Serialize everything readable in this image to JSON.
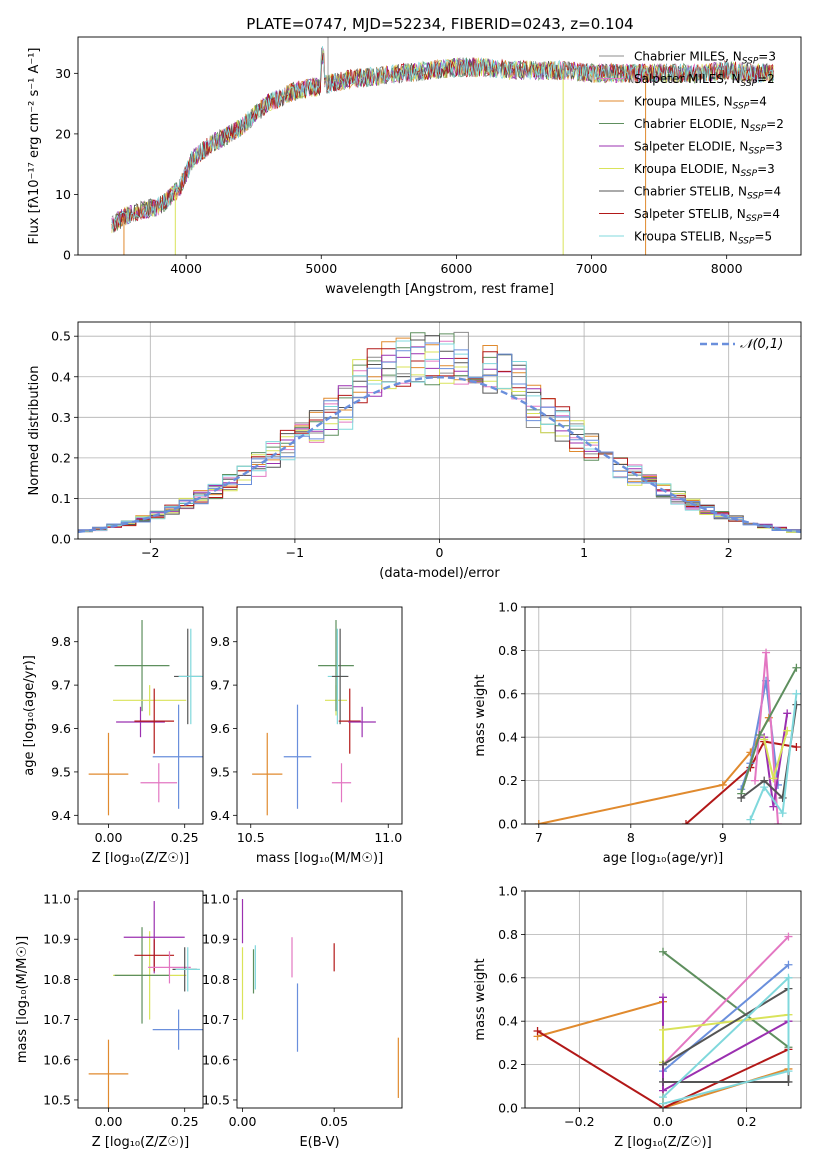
{
  "title": "PLATE=0747, MJD=52234, FIBERID=0243, z=0.104",
  "colors": {
    "Chabrier MILES": "#8c8c8c",
    "Salpeter MILES": "#e377c2",
    "Kroupa MILES": "#e08a2e",
    "Chabrier ELODIE": "#5e8f5e",
    "Salpeter ELODIE": "#9b30b0",
    "Kroupa ELODIE": "#d9e35a",
    "Chabrier STELIB": "#555555",
    "Salpeter STELIB": "#b21818",
    "Kroupa STELIB": "#80d8dc",
    "Blue": "#6a8fdc",
    "Orange": "#e07b20"
  },
  "chart_data": [
    {
      "type": "line",
      "xlabel": "wavelength [Angstrom, rest frame]",
      "ylabel": "Flux [fλ10⁻¹⁷ erg cm⁻² s⁻¹ A⁻¹]",
      "xlim": [
        3200,
        8550
      ],
      "ylim": [
        0,
        36
      ],
      "xticks": [
        4000,
        5000,
        6000,
        7000,
        8000
      ],
      "yticks": [
        0,
        10,
        20,
        30
      ],
      "grid": false,
      "legend_position": "right",
      "series": [
        {
          "name": "Chabrier MILES, N_SSP=3",
          "color": "#8c8c8c"
        },
        {
          "name": "Salpeter MILES, N_SSP=2",
          "color": "#e377c2"
        },
        {
          "name": "Kroupa MILES, N_SSP=4",
          "color": "#e08a2e"
        },
        {
          "name": "Chabrier ELODIE, N_SSP=2",
          "color": "#5e8f5e"
        },
        {
          "name": "Salpeter ELODIE, N_SSP=3",
          "color": "#9b30b0"
        },
        {
          "name": "Kroupa ELODIE, N_SSP=3",
          "color": "#d9e35a"
        },
        {
          "name": "Chabrier STELIB, N_SSP=4",
          "color": "#555555"
        },
        {
          "name": "Salpeter STELIB, N_SSP=4",
          "color": "#b21818"
        },
        {
          "name": "Kroupa STELIB, N_SSP=5",
          "color": "#80d8dc"
        }
      ],
      "continuum": {
        "x": [
          3450,
          3600,
          3800,
          3950,
          4050,
          4200,
          4400,
          4600,
          4800,
          5000,
          5200,
          5400,
          5600,
          5800,
          6000,
          6200,
          6400,
          6600,
          6800,
          7000,
          7200,
          7400,
          7600,
          7800,
          8000,
          8200,
          8350
        ],
        "y": [
          5,
          7,
          8,
          11,
          16,
          18.5,
          21,
          25,
          27,
          28,
          29,
          29.5,
          30,
          30.5,
          31,
          31,
          30.5,
          30.5,
          30.5,
          30,
          30,
          30,
          30,
          30,
          30.5,
          30,
          30
        ]
      }
    },
    {
      "type": "step",
      "xlabel": "(data-model)/error",
      "ylabel": "Normed distribution",
      "xlim": [
        -2.5,
        2.5
      ],
      "ylim": [
        0,
        0.535
      ],
      "xticks": [
        -2,
        -1,
        0,
        1,
        2
      ],
      "yticks": [
        0,
        0.1,
        0.2,
        0.3,
        0.4,
        0.5
      ],
      "grid": true,
      "legend": "𝒩(0,1)",
      "legend_position": "top-right",
      "hist_bin_width": 0.1,
      "reference_curve": "normal(0,1)"
    },
    {
      "type": "scatter",
      "xlabel": "Z [log₁₀(Z/Z☉)]",
      "ylabel": "age  [log₁₀(age/yr)]",
      "xlim": [
        -0.1,
        0.31
      ],
      "ylim": [
        9.38,
        9.88
      ],
      "xticks": [
        0.0,
        0.25
      ],
      "yticks": [
        9.4,
        9.5,
        9.6,
        9.7,
        9.8
      ],
      "points": [
        {
          "color": "#e08a2e",
          "x": 0.0,
          "xerr": 0.065,
          "y": 9.495,
          "yerr": 0.095
        },
        {
          "color": "#5e8f5e",
          "x": 0.11,
          "xerr": 0.09,
          "y": 9.745,
          "yerr": 0.105
        },
        {
          "color": "#9b30b0",
          "x": 0.105,
          "xerr": 0.08,
          "y": 9.615,
          "yerr": 0.035
        },
        {
          "color": "#d9e35a",
          "x": 0.135,
          "xerr": 0.12,
          "y": 9.665,
          "yerr": 0.035
        },
        {
          "color": "#b21818",
          "x": 0.15,
          "xerr": 0.065,
          "y": 9.617,
          "yerr": 0.075
        },
        {
          "color": "#e377c2",
          "x": 0.165,
          "xerr": 0.06,
          "y": 9.475,
          "yerr": 0.045
        },
        {
          "color": "#6a8fdc",
          "x": 0.23,
          "xerr": 0.085,
          "y": 9.535,
          "yerr": 0.12
        },
        {
          "color": "#555555",
          "x": 0.26,
          "xerr": 0.045,
          "y": 9.72,
          "yerr": 0.11
        },
        {
          "color": "#80d8dc",
          "x": 0.27,
          "xerr": 0.04,
          "y": 9.72,
          "yerr": 0.11
        }
      ]
    },
    {
      "type": "scatter",
      "xlabel": "mass [log₁₀(M/M☉)]",
      "ylabel": "",
      "xlim": [
        10.45,
        11.05
      ],
      "ylim": [
        9.38,
        9.88
      ],
      "xticks": [
        10.5,
        11.0
      ],
      "yticks": [
        9.4,
        9.5,
        9.6,
        9.7,
        9.8
      ],
      "points": [
        {
          "color": "#e08a2e",
          "x": 10.56,
          "xerr": 0.055,
          "y": 9.495,
          "yerr": 0.095
        },
        {
          "color": "#6a8fdc",
          "x": 10.67,
          "xerr": 0.05,
          "y": 9.535,
          "yerr": 0.12
        },
        {
          "color": "#d9e35a",
          "x": 10.81,
          "xerr": 0.04,
          "y": 9.665,
          "yerr": 0.035
        },
        {
          "color": "#5e8f5e",
          "x": 10.81,
          "xerr": 0.065,
          "y": 9.745,
          "yerr": 0.105
        },
        {
          "color": "#80d8dc",
          "x": 10.815,
          "xerr": 0.035,
          "y": 9.72,
          "yerr": 0.11
        },
        {
          "color": "#555555",
          "x": 10.825,
          "xerr": 0.03,
          "y": 9.72,
          "yerr": 0.11
        },
        {
          "color": "#e377c2",
          "x": 10.83,
          "xerr": 0.035,
          "y": 9.475,
          "yerr": 0.045
        },
        {
          "color": "#b21818",
          "x": 10.86,
          "xerr": 0.04,
          "y": 9.617,
          "yerr": 0.075
        },
        {
          "color": "#9b30b0",
          "x": 10.905,
          "xerr": 0.05,
          "y": 9.615,
          "yerr": 0.035
        }
      ]
    },
    {
      "type": "line",
      "xlabel": "age  [log₁₀(age/yr)]",
      "ylabel": "mass weight",
      "xlim": [
        6.85,
        9.85
      ],
      "ylim": [
        0,
        1.0
      ],
      "xticks": [
        7,
        8,
        9
      ],
      "yticks": [
        0.0,
        0.2,
        0.4,
        0.6,
        0.8,
        1.0
      ],
      "grid": true,
      "series": [
        {
          "color": "#e08a2e",
          "x": [
            7.0,
            9.0,
            9.3,
            9.5
          ],
          "y": [
            0.0,
            0.18,
            0.33,
            0.49
          ]
        },
        {
          "color": "#b21818",
          "x": [
            8.6,
            9.3,
            9.45,
            9.8
          ],
          "y": [
            0.0,
            0.26,
            0.38,
            0.355
          ]
        },
        {
          "color": "#6a8fdc",
          "x": [
            9.2,
            9.3,
            9.47,
            9.6
          ],
          "y": [
            0.16,
            0.28,
            0.66,
            0.18
          ]
        },
        {
          "color": "#e377c2",
          "x": [
            9.35,
            9.47,
            9.6
          ],
          "y": [
            0.2,
            0.79,
            0.0
          ]
        },
        {
          "color": "#5e8f5e",
          "x": [
            9.2,
            9.4,
            9.8
          ],
          "y": [
            0.14,
            0.41,
            0.72
          ]
        },
        {
          "color": "#9b30b0",
          "x": [
            9.45,
            9.55,
            9.7
          ],
          "y": [
            0.4,
            0.08,
            0.51
          ]
        },
        {
          "color": "#d9e35a",
          "x": [
            9.45,
            9.55,
            9.7
          ],
          "y": [
            0.39,
            0.21,
            0.43
          ]
        },
        {
          "color": "#555555",
          "x": [
            9.2,
            9.45,
            9.65,
            9.8
          ],
          "y": [
            0.12,
            0.2,
            0.12,
            0.55
          ]
        },
        {
          "color": "#80d8dc",
          "x": [
            9.3,
            9.45,
            9.65,
            9.8
          ],
          "y": [
            0.02,
            0.17,
            0.05,
            0.6
          ]
        }
      ]
    },
    {
      "type": "scatter",
      "xlabel": "Z [log₁₀(Z/Z☉)]",
      "ylabel": "mass [log₁₀(M/M☉)]",
      "xlim": [
        -0.1,
        0.31
      ],
      "ylim": [
        10.48,
        11.02
      ],
      "xticks": [
        0.0,
        0.25
      ],
      "yticks": [
        10.5,
        10.6,
        10.7,
        10.8,
        10.9,
        11.0
      ],
      "points": [
        {
          "color": "#e08a2e",
          "x": 0.0,
          "xerr": 0.065,
          "y": 10.565,
          "yerr": 0.085
        },
        {
          "color": "#6a8fdc",
          "x": 0.23,
          "xerr": 0.085,
          "y": 10.675,
          "yerr": 0.05
        },
        {
          "color": "#d9e35a",
          "x": 0.135,
          "xerr": 0.12,
          "y": 10.81,
          "yerr": 0.11
        },
        {
          "color": "#5e8f5e",
          "x": 0.11,
          "xerr": 0.09,
          "y": 10.81,
          "yerr": 0.12
        },
        {
          "color": "#9b30b0",
          "x": 0.15,
          "xerr": 0.1,
          "y": 10.905,
          "yerr": 0.09
        },
        {
          "color": "#b21818",
          "x": 0.15,
          "xerr": 0.065,
          "y": 10.86,
          "yerr": 0.04
        },
        {
          "color": "#e377c2",
          "x": 0.2,
          "xerr": 0.07,
          "y": 10.83,
          "yerr": 0.04
        },
        {
          "color": "#555555",
          "x": 0.25,
          "xerr": 0.04,
          "y": 10.825,
          "yerr": 0.055
        },
        {
          "color": "#80d8dc",
          "x": 0.26,
          "xerr": 0.04,
          "y": 10.825,
          "yerr": 0.055
        }
      ]
    },
    {
      "type": "scatter",
      "xlabel": "E(B-V)",
      "ylabel": "",
      "xlim": [
        -0.003,
        0.087
      ],
      "ylim": [
        10.48,
        11.02
      ],
      "xticks": [
        0.0,
        0.05
      ],
      "yticks": [
        10.5,
        10.6,
        10.7,
        10.8,
        10.9,
        11.0
      ],
      "points": [
        {
          "color": "#9b30b0",
          "x": 0.0,
          "y": 10.945,
          "yerr": 0.055
        },
        {
          "color": "#d9e35a",
          "x": 0.0,
          "y": 10.79,
          "yerr": 0.09
        },
        {
          "color": "#5e8f5e",
          "x": 0.006,
          "y": 10.82,
          "yerr": 0.055
        },
        {
          "color": "#80d8dc",
          "x": 0.007,
          "y": 10.83,
          "yerr": 0.055
        },
        {
          "color": "#e377c2",
          "x": 0.027,
          "y": 10.855,
          "yerr": 0.05
        },
        {
          "color": "#6a8fdc",
          "x": 0.03,
          "y": 10.705,
          "yerr": 0.085
        },
        {
          "color": "#b21818",
          "x": 0.05,
          "y": 10.855,
          "yerr": 0.035
        },
        {
          "color": "#e08a2e",
          "x": 0.085,
          "y": 10.58,
          "yerr": 0.075
        }
      ]
    },
    {
      "type": "line",
      "xlabel": "Z [log₁₀(Z/Z☉)]",
      "ylabel": "mass weight",
      "xlim": [
        -0.33,
        0.33
      ],
      "ylim": [
        0,
        1.0
      ],
      "xticks": [
        -0.2,
        0.0,
        0.2
      ],
      "yticks": [
        0.0,
        0.2,
        0.4,
        0.6,
        0.8,
        1.0
      ],
      "grid": true,
      "series": [
        {
          "color": "#e08a2e",
          "x": [
            -0.3,
            0.0,
            0.0,
            0.3
          ],
          "y": [
            0.33,
            0.49,
            0.0,
            0.18
          ]
        },
        {
          "color": "#b21818",
          "x": [
            -0.3,
            0.0,
            0.3
          ],
          "y": [
            0.355,
            0.0,
            0.27
          ]
        },
        {
          "color": "#5e8f5e",
          "x": [
            0.0,
            0.3
          ],
          "y": [
            0.72,
            0.28
          ]
        },
        {
          "color": "#e377c2",
          "x": [
            0.0,
            0.3
          ],
          "y": [
            0.2,
            0.79
          ]
        },
        {
          "color": "#6a8fdc",
          "x": [
            0.0,
            0.3
          ],
          "y": [
            0.17,
            0.66
          ]
        },
        {
          "color": "#9b30b0",
          "x": [
            0.0,
            0.0,
            0.3
          ],
          "y": [
            0.51,
            0.08,
            0.4
          ]
        },
        {
          "color": "#d9e35a",
          "x": [
            0.0,
            0.0,
            0.3
          ],
          "y": [
            0.21,
            0.36,
            0.43
          ]
        },
        {
          "color": "#555555",
          "x": [
            0.0,
            0.3,
            0.3,
            0.0
          ],
          "y": [
            0.12,
            0.12,
            0.55,
            0.2
          ]
        },
        {
          "color": "#80d8dc",
          "x": [
            0.0,
            0.3,
            0.3,
            0.0
          ],
          "y": [
            0.05,
            0.6,
            0.17,
            0.02
          ]
        }
      ]
    }
  ]
}
